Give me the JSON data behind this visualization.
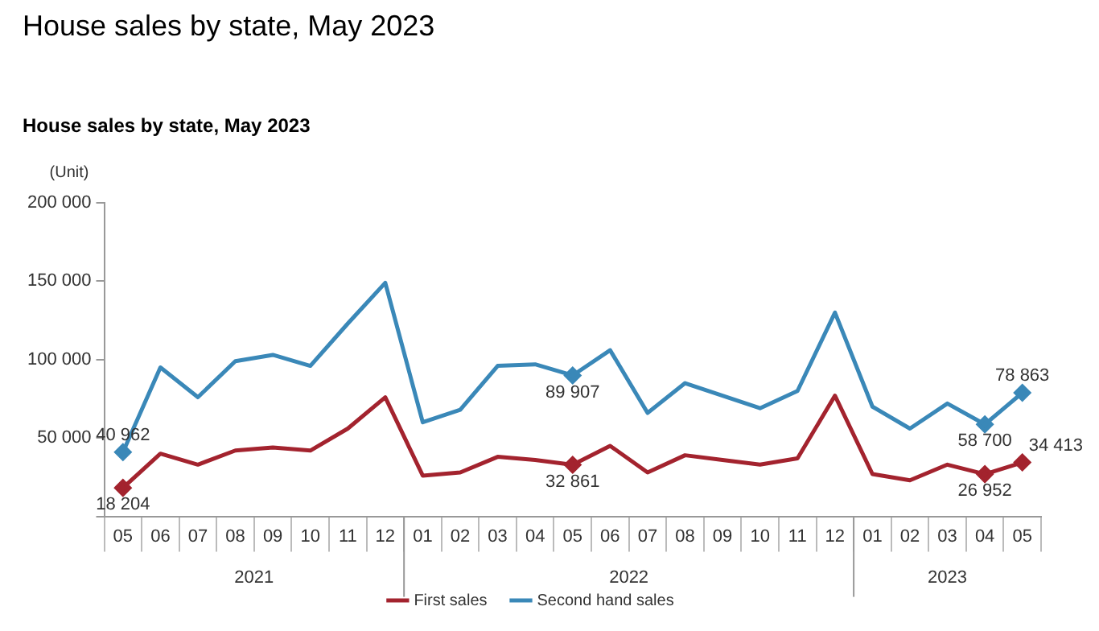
{
  "chart_data": {
    "type": "line",
    "title": "House sales by state, May 2023",
    "subtitle": "House sales by state, May 2023",
    "ylabel": "(Unit)",
    "categories": [
      "05",
      "06",
      "07",
      "08",
      "09",
      "10",
      "11",
      "12",
      "01",
      "02",
      "03",
      "04",
      "05",
      "06",
      "07",
      "08",
      "09",
      "10",
      "11",
      "12",
      "01",
      "02",
      "03",
      "04",
      "05"
    ],
    "annotations": [
      "2021",
      "2022",
      "2023"
    ],
    "series": [
      {
        "name": "First sales",
        "color": "#a3232e",
        "values": [
          18204,
          40000,
          33000,
          42000,
          44000,
          42000,
          56000,
          76000,
          26000,
          28000,
          38000,
          36000,
          32861,
          45000,
          28000,
          39000,
          36000,
          33000,
          37000,
          77000,
          27000,
          23000,
          33000,
          26952,
          34413
        ],
        "value_labels": [
          "18 204",
          null,
          null,
          null,
          null,
          null,
          null,
          null,
          null,
          null,
          null,
          null,
          "32 861",
          null,
          null,
          null,
          null,
          null,
          null,
          null,
          null,
          null,
          null,
          "26 952",
          "34 413"
        ]
      },
      {
        "name": "Second hand sales",
        "color": "#3a88b8",
        "values": [
          40962,
          95000,
          76000,
          99000,
          103000,
          96000,
          123000,
          149000,
          60000,
          68000,
          96000,
          97000,
          89907,
          106000,
          66000,
          85000,
          77000,
          69000,
          80000,
          130000,
          70000,
          56000,
          72000,
          58700,
          78863
        ],
        "value_labels": [
          "40 962",
          null,
          null,
          null,
          null,
          null,
          null,
          null,
          null,
          null,
          null,
          null,
          "89 907",
          null,
          null,
          null,
          null,
          null,
          null,
          null,
          null,
          null,
          null,
          "58 700",
          "78 863"
        ]
      }
    ],
    "ylim": [
      0,
      200000
    ],
    "yticks": [
      {
        "value": 0,
        "label": null
      },
      {
        "value": 50000,
        "label": "50 000"
      },
      {
        "value": 100000,
        "label": "100 000"
      },
      {
        "value": 150000,
        "label": "150 000"
      },
      {
        "value": 200000,
        "label": "200 000"
      }
    ],
    "grid": false,
    "legend": "bottom",
    "line_style": "solid"
  }
}
